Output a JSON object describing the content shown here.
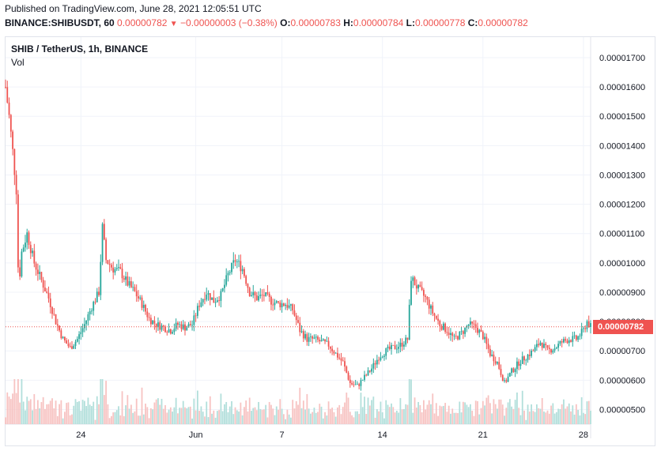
{
  "header": {
    "published": "Published on TradingView.com, June 28, 2021 12:05:51 UTC",
    "symbol_line": "BINANCE:SHIBUSDT, 60",
    "last": "0.00000782",
    "change_arrow": "▼",
    "change": "−0.00000003 (−0.38%)",
    "o_label": "O:",
    "o_value": "0.00000783",
    "h_label": "H:",
    "h_value": "0.00000784",
    "l_label": "L:",
    "l_value": "0.00000778",
    "c_label": "C:",
    "c_value": "0.00000782"
  },
  "legend": {
    "title": "SHIB / TetherUS, 1h, BINANCE",
    "vol": "Vol"
  },
  "colors": {
    "up": "#26a69a",
    "down": "#ef5350",
    "vol_up": "#b2dfdb",
    "vol_down": "#f7c3c2",
    "grid": "#f0f3fa"
  },
  "chart_data": {
    "type": "candlestick",
    "title": "SHIB / TetherUS, 1h, BINANCE",
    "y_ticks": [
      5e-06,
      6e-06,
      7e-06,
      8e-06,
      9e-06,
      1e-05,
      1.1e-05,
      1.2e-05,
      1.3e-05,
      1.4e-05,
      1.5e-05,
      1.6e-05,
      1.7e-05
    ],
    "y_tick_labels": [
      "0.00000500",
      "0.00000600",
      "0.00000700",
      "0.00000800",
      "0.00000900",
      "0.00001000",
      "0.00001100",
      "0.00001200",
      "0.00001300",
      "0.00001400",
      "0.00001500",
      "0.00001600",
      "0.00001700"
    ],
    "ylim": [
      4.5e-06,
      1.77e-05
    ],
    "x_ticks": [
      "2021-05-24",
      "2021-06-01",
      "2021-06-07",
      "2021-06-14",
      "2021-06-21",
      "2021-06-28"
    ],
    "x_tick_labels": [
      "24",
      "Jun",
      "7",
      "14",
      "21",
      "28"
    ],
    "xlim": [
      "2021-05-18T18:00",
      "2021-06-28T12:00"
    ],
    "last_price": 7.82e-06,
    "last_price_label": "0.00000782",
    "grid": true,
    "price_path": [
      [
        "2021-05-18T18:00",
        1.6e-05
      ],
      [
        "2021-05-19T00:00",
        1.5e-05
      ],
      [
        "2021-05-19T06:00",
        1.38e-05
      ],
      [
        "2021-05-19T12:00",
        1.25e-05
      ],
      [
        "2021-05-19T16:00",
        9e-06
      ],
      [
        "2021-05-19T20:00",
        1.03e-05
      ],
      [
        "2021-05-20T06:00",
        1.1e-05
      ],
      [
        "2021-05-20T18:00",
        1e-05
      ],
      [
        "2021-05-21T06:00",
        9.4e-06
      ],
      [
        "2021-05-21T18:00",
        8.8e-06
      ],
      [
        "2021-05-22T06:00",
        8e-06
      ],
      [
        "2021-05-22T18:00",
        7.4e-06
      ],
      [
        "2021-05-23T06:00",
        7.1e-06
      ],
      [
        "2021-05-23T18:00",
        7.4e-06
      ],
      [
        "2021-05-24T06:00",
        7.9e-06
      ],
      [
        "2021-05-24T18:00",
        8.5e-06
      ],
      [
        "2021-05-25T06:00",
        9e-06
      ],
      [
        "2021-05-25T12:00",
        1.12e-05
      ],
      [
        "2021-05-25T18:00",
        1.01e-05
      ],
      [
        "2021-05-26T06:00",
        9.8e-06
      ],
      [
        "2021-05-26T18:00",
        9.7e-06
      ],
      [
        "2021-05-27T06:00",
        9.3e-06
      ],
      [
        "2021-05-27T18:00",
        9e-06
      ],
      [
        "2021-05-28T06:00",
        8.6e-06
      ],
      [
        "2021-05-28T18:00",
        8.1e-06
      ],
      [
        "2021-05-29T06:00",
        7.9e-06
      ],
      [
        "2021-05-29T18:00",
        7.8e-06
      ],
      [
        "2021-05-30T06:00",
        7.7e-06
      ],
      [
        "2021-05-30T18:00",
        7.9e-06
      ],
      [
        "2021-05-31T06:00",
        7.8e-06
      ],
      [
        "2021-05-31T18:00",
        7.9e-06
      ],
      [
        "2021-06-01T06:00",
        8.6e-06
      ],
      [
        "2021-06-01T18:00",
        9e-06
      ],
      [
        "2021-06-02T06:00",
        8.7e-06
      ],
      [
        "2021-06-02T18:00",
        8.9e-06
      ],
      [
        "2021-06-03T06:00",
        9.6e-06
      ],
      [
        "2021-06-03T18:00",
        1.01e-05
      ],
      [
        "2021-06-04T06:00",
        9.8e-06
      ],
      [
        "2021-06-04T18:00",
        9e-06
      ],
      [
        "2021-06-05T06:00",
        8.8e-06
      ],
      [
        "2021-06-05T18:00",
        8.9e-06
      ],
      [
        "2021-06-06T06:00",
        8.7e-06
      ],
      [
        "2021-06-06T18:00",
        8.6e-06
      ],
      [
        "2021-06-07T06:00",
        8.6e-06
      ],
      [
        "2021-06-07T18:00",
        8.4e-06
      ],
      [
        "2021-06-08T06:00",
        7.7e-06
      ],
      [
        "2021-06-08T18:00",
        7.4e-06
      ],
      [
        "2021-06-09T06:00",
        7.4e-06
      ],
      [
        "2021-06-09T18:00",
        7.3e-06
      ],
      [
        "2021-06-10T06:00",
        7.2e-06
      ],
      [
        "2021-06-10T18:00",
        6.9e-06
      ],
      [
        "2021-06-11T06:00",
        6.6e-06
      ],
      [
        "2021-06-11T18:00",
        5.9e-06
      ],
      [
        "2021-06-12T06:00",
        5.8e-06
      ],
      [
        "2021-06-12T18:00",
        6.1e-06
      ],
      [
        "2021-06-13T06:00",
        6.4e-06
      ],
      [
        "2021-06-13T18:00",
        6.8e-06
      ],
      [
        "2021-06-14T06:00",
        7e-06
      ],
      [
        "2021-06-14T18:00",
        7.1e-06
      ],
      [
        "2021-06-15T06:00",
        7.2e-06
      ],
      [
        "2021-06-15T18:00",
        7.4e-06
      ],
      [
        "2021-06-16T00:00",
        9.5e-06
      ],
      [
        "2021-06-16T12:00",
        9.1e-06
      ],
      [
        "2021-06-17T00:00",
        8.8e-06
      ],
      [
        "2021-06-17T12:00",
        8.3e-06
      ],
      [
        "2021-06-18T00:00",
        7.9e-06
      ],
      [
        "2021-06-18T12:00",
        7.7e-06
      ],
      [
        "2021-06-19T00:00",
        7.4e-06
      ],
      [
        "2021-06-19T12:00",
        7.6e-06
      ],
      [
        "2021-06-20T00:00",
        7.9e-06
      ],
      [
        "2021-06-20T12:00",
        7.8e-06
      ],
      [
        "2021-06-21T00:00",
        7.5e-06
      ],
      [
        "2021-06-21T12:00",
        6.9e-06
      ],
      [
        "2021-06-22T00:00",
        6.6e-06
      ],
      [
        "2021-06-22T12:00",
        5.9e-06
      ],
      [
        "2021-06-23T00:00",
        6.3e-06
      ],
      [
        "2021-06-23T12:00",
        6.6e-06
      ],
      [
        "2021-06-24T00:00",
        6.8e-06
      ],
      [
        "2021-06-24T12:00",
        7e-06
      ],
      [
        "2021-06-25T00:00",
        7.3e-06
      ],
      [
        "2021-06-25T12:00",
        7e-06
      ],
      [
        "2021-06-26T00:00",
        7.1e-06
      ],
      [
        "2021-06-26T12:00",
        7.3e-06
      ],
      [
        "2021-06-27T00:00",
        7.4e-06
      ],
      [
        "2021-06-27T12:00",
        7.4e-06
      ],
      [
        "2021-06-28T00:00",
        7.7e-06
      ],
      [
        "2021-06-28T06:00",
        8e-06
      ],
      [
        "2021-06-28T12:00",
        7.82e-06
      ]
    ]
  }
}
